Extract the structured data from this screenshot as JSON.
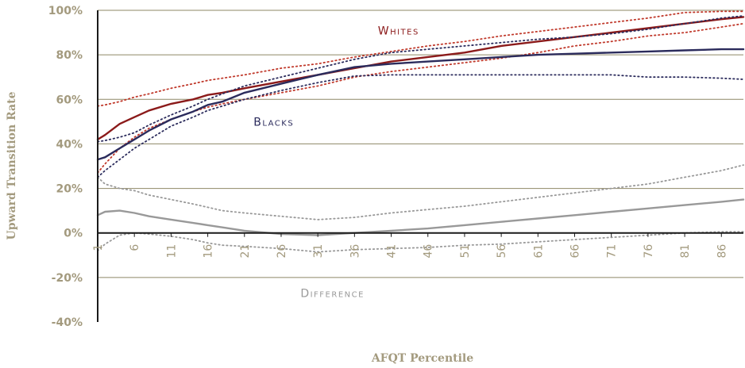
{
  "chart_data": {
    "type": "line",
    "xlabel": "AFQT Percentile",
    "ylabel": "Upward Transition Rate",
    "x_ticks": [
      1,
      6,
      11,
      16,
      21,
      26,
      31,
      36,
      41,
      46,
      51,
      56,
      61,
      66,
      71,
      76,
      81,
      86
    ],
    "y_ticks": [
      100,
      80,
      60,
      40,
      20,
      0,
      -20,
      -40
    ],
    "y_tick_labels": [
      "100%",
      "80%",
      "60%",
      "40%",
      "20%",
      "0%",
      "-20%",
      "-40%"
    ],
    "xlim": [
      1,
      89
    ],
    "ylim": [
      -40,
      100
    ],
    "grid": "horizontal",
    "x": [
      1,
      2,
      4,
      6,
      8,
      11,
      14,
      16,
      18,
      21,
      26,
      31,
      36,
      41,
      46,
      51,
      56,
      61,
      66,
      71,
      76,
      81,
      86,
      89
    ],
    "series": [
      {
        "key": "whites",
        "color": "#8b1a1a",
        "style": "solid",
        "values": [
          42,
          44,
          49,
          52,
          55,
          58,
          60,
          62,
          63,
          65,
          68,
          71,
          74,
          77,
          79,
          81,
          84,
          86,
          88,
          90,
          92,
          94,
          96,
          97
        ]
      },
      {
        "key": "whites_ci_upper",
        "color": "#c0392b",
        "style": "dotted",
        "values": [
          57,
          57.5,
          59,
          61,
          62.5,
          65,
          67,
          68.5,
          69.5,
          71,
          74,
          76,
          79,
          81.5,
          84,
          86,
          88.5,
          90.5,
          92.5,
          94.5,
          96.5,
          99,
          99.5,
          99.5
        ]
      },
      {
        "key": "whites_ci_lower",
        "color": "#c0392b",
        "style": "dotted",
        "values": [
          27,
          31,
          38,
          43,
          47,
          51,
          54.5,
          56.5,
          58,
          60,
          63,
          66,
          70,
          72.5,
          74.5,
          76.5,
          78.5,
          81,
          84,
          86,
          88.5,
          90,
          92.5,
          94
        ]
      },
      {
        "key": "blacks",
        "color": "#2b2b5c",
        "style": "solid",
        "values": [
          33,
          34,
          38,
          42,
          46,
          51,
          54.5,
          57.5,
          59,
          63,
          67,
          71,
          74.5,
          76,
          77,
          78,
          79,
          80,
          80.5,
          81,
          81.5,
          82,
          82.5,
          82.5
        ]
      },
      {
        "key": "blacks_ci_upper",
        "color": "#2b2b5c",
        "style": "dotted",
        "values": [
          41,
          41.5,
          43,
          45,
          48.5,
          53,
          57,
          60,
          62.5,
          66,
          70,
          74,
          78,
          81,
          82.5,
          84,
          85.5,
          87,
          88,
          89.5,
          91.5,
          94,
          96.5,
          97.5
        ]
      },
      {
        "key": "blacks_ci_lower",
        "color": "#2b2b5c",
        "style": "dotted",
        "values": [
          25,
          28,
          33,
          38,
          42,
          48,
          52,
          55,
          57,
          60,
          64,
          67.5,
          70.5,
          71,
          71,
          71,
          71,
          71,
          71,
          71,
          70,
          70,
          69.5,
          69
        ]
      },
      {
        "key": "difference",
        "color": "#999999",
        "style": "solid",
        "values": [
          8,
          9.5,
          10,
          9,
          7.5,
          6,
          4.5,
          3.5,
          2.5,
          1,
          -0.5,
          -1,
          0,
          1,
          2,
          3.5,
          5,
          6.5,
          8,
          9.5,
          11,
          12.5,
          14,
          15
        ]
      },
      {
        "key": "difference_ci_upper",
        "color": "#999999",
        "style": "dotted",
        "values": [
          25,
          22,
          20,
          19,
          17,
          15,
          13,
          11.5,
          10,
          9,
          7.5,
          6,
          7,
          9,
          10.5,
          12,
          14,
          16,
          18,
          20,
          22,
          25,
          28,
          30.5
        ]
      },
      {
        "key": "difference_ci_lower",
        "color": "#999999",
        "style": "dotted",
        "values": [
          -8,
          -5,
          -1,
          0,
          -0.5,
          -1.5,
          -3,
          -4.5,
          -5.5,
          -6,
          -7,
          -8.5,
          -7.5,
          -7,
          -6.5,
          -5.5,
          -5,
          -4,
          -3,
          -2,
          -1,
          0,
          0.5,
          0.5
        ]
      }
    ],
    "annotations": [
      {
        "key": "whites",
        "text": "Whites",
        "x": 42,
        "y": 91,
        "color": "#8b1a1a"
      },
      {
        "key": "blacks",
        "text": "Blacks",
        "x": 25,
        "y": 50,
        "color": "#2b2b5c"
      },
      {
        "key": "difference",
        "text": "Difference",
        "x": 33,
        "y": -27,
        "color": "#999999"
      }
    ]
  }
}
